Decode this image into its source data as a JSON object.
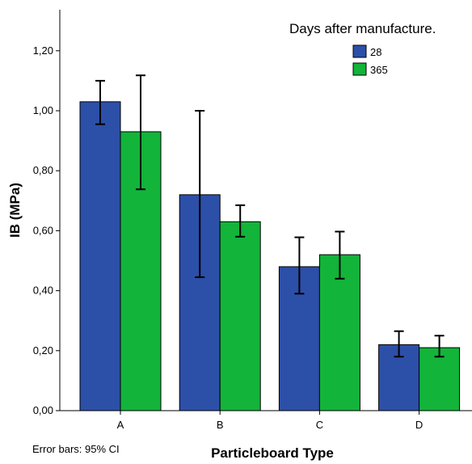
{
  "chart_data": {
    "type": "bar",
    "categories": [
      "A",
      "B",
      "C",
      "D"
    ],
    "series": [
      {
        "name": "28",
        "color": "#2c4fa8",
        "values": [
          1.03,
          0.72,
          0.48,
          0.22
        ],
        "ci_lower": [
          0.955,
          0.445,
          0.39,
          0.18
        ],
        "ci_upper": [
          1.1,
          1.0,
          0.578,
          0.265
        ]
      },
      {
        "name": "365",
        "color": "#12b43a",
        "values": [
          0.93,
          0.63,
          0.52,
          0.21
        ],
        "ci_lower": [
          0.738,
          0.58,
          0.44,
          0.18
        ],
        "ci_upper": [
          1.118,
          0.685,
          0.597,
          0.25
        ]
      }
    ],
    "xlabel": "Particleboard Type",
    "ylabel": "IB (MPa)",
    "ylim": [
      0,
      1.3
    ],
    "yticks": [
      "0,00",
      "0,20",
      "0,40",
      "0,60",
      "0,80",
      "1,00",
      "1,20"
    ],
    "ytick_values": [
      0,
      0.2,
      0.4,
      0.6,
      0.8,
      1.0,
      1.2
    ],
    "legend_title": "Days after manufacture.",
    "legend_position": "top-right",
    "grid": false,
    "footnote": "Error bars: 95% CI"
  }
}
